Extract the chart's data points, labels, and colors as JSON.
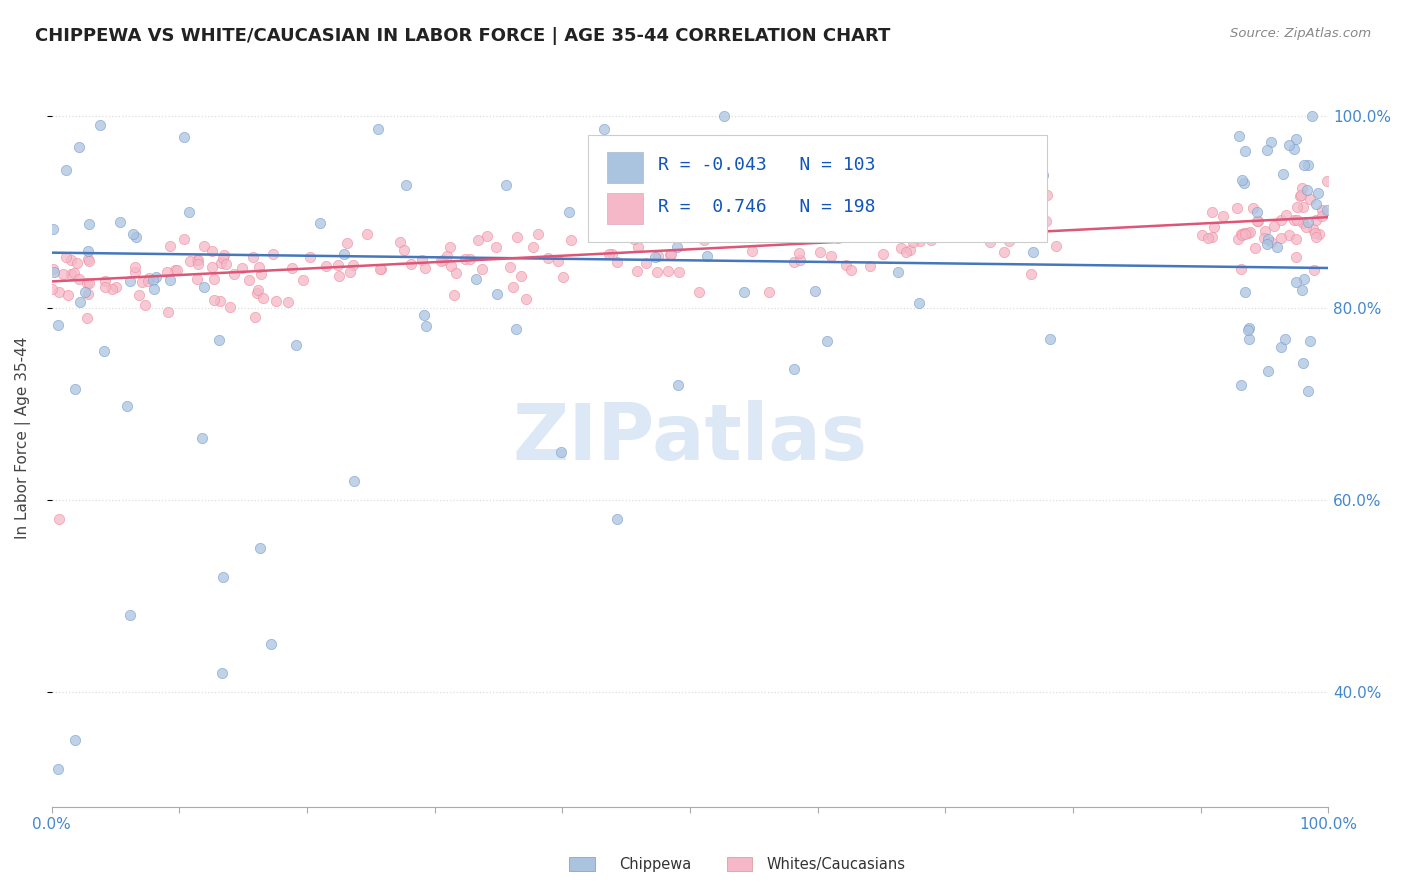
{
  "title": "CHIPPEWA VS WHITE/CAUCASIAN IN LABOR FORCE | AGE 35-44 CORRELATION CHART",
  "source": "Source: ZipAtlas.com",
  "ylabel": "In Labor Force | Age 35-44",
  "xlim": [
    0.0,
    1.0
  ],
  "ylim": [
    0.28,
    1.05
  ],
  "ytick_positions": [
    0.4,
    0.6,
    0.8,
    1.0
  ],
  "ytick_labels": [
    "40.0%",
    "60.0%",
    "80.0%",
    "100.0%"
  ],
  "legend_R1": "-0.043",
  "legend_N1": "103",
  "legend_R2": "0.746",
  "legend_N2": "198",
  "chippewa_color": "#aac4e0",
  "caucasian_color": "#f4b8c8",
  "chippewa_line_color": "#4477bb",
  "caucasian_line_color": "#dd5577",
  "chippewa_edge_color": "#7799cc",
  "caucasian_edge_color": "#ee8899",
  "watermark": "ZIPatlas",
  "watermark_color": "#dce8f5",
  "background_color": "#ffffff",
  "title_color": "#222222",
  "source_color": "#888888",
  "tick_label_color": "#4488cc",
  "grid_color": "#dddddd",
  "legend_text_color": "#1155bb"
}
